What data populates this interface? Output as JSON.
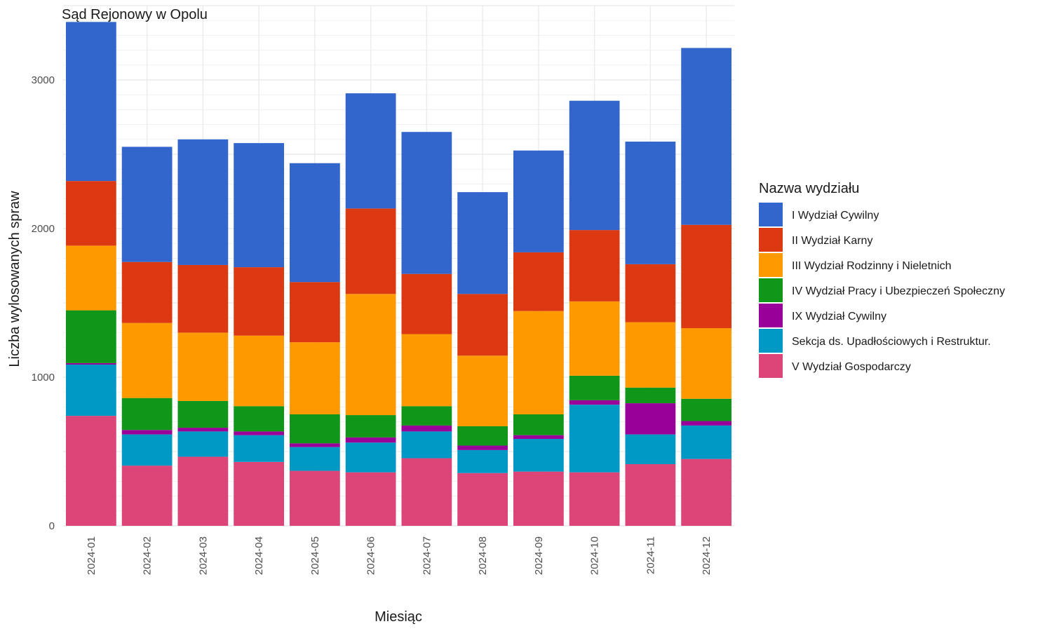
{
  "chart_data": {
    "type": "bar",
    "stacked": true,
    "title": "Sąd Rejonowy w Opolu",
    "xlabel": "Miesiąc",
    "ylabel": "Liczba wylosowanych spraw",
    "ylim": [
      0,
      3500
    ],
    "yticks": [
      0,
      1000,
      2000,
      3000
    ],
    "grid": true,
    "legend_title": "Nazwa wydziału",
    "legend_position": "right",
    "categories": [
      "2024-01",
      "2024-02",
      "2024-03",
      "2024-04",
      "2024-05",
      "2024-06",
      "2024-07",
      "2024-08",
      "2024-09",
      "2024-10",
      "2024-11",
      "2024-12"
    ],
    "series": [
      {
        "name": "V Wydział Gospodarczy",
        "color": "#dd4477",
        "values": [
          740,
          405,
          465,
          430,
          370,
          360,
          455,
          355,
          365,
          360,
          415,
          450
        ]
      },
      {
        "name": "Sekcja ds. Upadłościowych i Restruktur.",
        "color": "#0099c6",
        "values": [
          345,
          210,
          170,
          180,
          160,
          200,
          180,
          155,
          220,
          455,
          200,
          225
        ]
      },
      {
        "name": "IX Wydział Cywilny",
        "color": "#990099",
        "values": [
          10,
          30,
          25,
          25,
          25,
          35,
          40,
          30,
          25,
          30,
          210,
          30
        ]
      },
      {
        "name": "IV Wydział Pracy i Ubezpieczeń Społeczny",
        "color": "#109618",
        "values": [
          355,
          215,
          180,
          170,
          195,
          150,
          130,
          130,
          140,
          165,
          105,
          150
        ]
      },
      {
        "name": "III Wydział Rodzinny i Nieletnich",
        "color": "#ff9900",
        "values": [
          435,
          505,
          460,
          475,
          485,
          815,
          485,
          475,
          695,
          500,
          440,
          475
        ]
      },
      {
        "name": "II Wydział Karny",
        "color": "#dc3912",
        "values": [
          435,
          410,
          455,
          460,
          405,
          575,
          405,
          415,
          395,
          480,
          390,
          695
        ]
      },
      {
        "name": "I Wydział Cywilny",
        "color": "#3366cc",
        "values": [
          1070,
          775,
          845,
          835,
          800,
          775,
          955,
          685,
          685,
          870,
          825,
          1190
        ]
      }
    ],
    "legend_order": [
      "I Wydział Cywilny",
      "II Wydział Karny",
      "III Wydział Rodzinny i Nieletnich",
      "IV Wydział Pracy i Ubezpieczeń Społeczny",
      "IX Wydział Cywilny",
      "Sekcja ds. Upadłościowych i Restruktur.",
      "V Wydział Gospodarczy"
    ]
  }
}
